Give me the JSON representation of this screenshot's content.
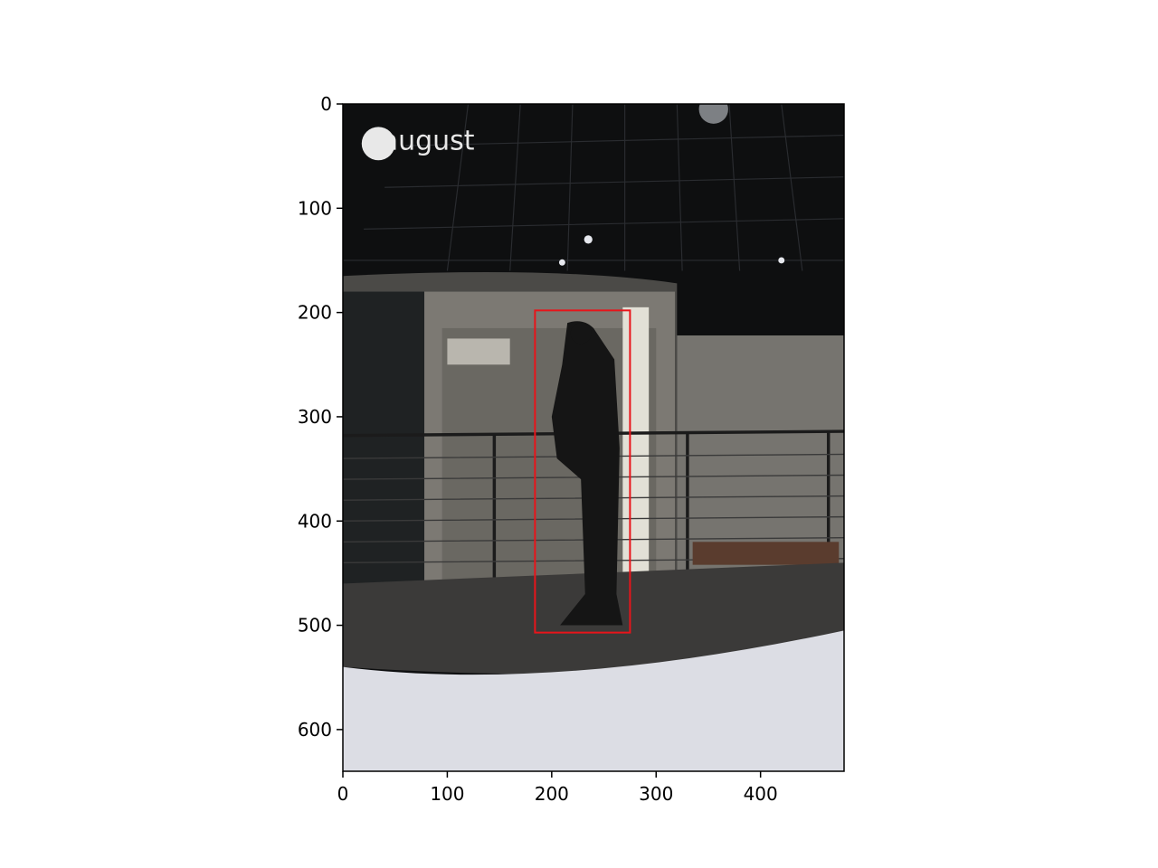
{
  "chart_data": {
    "type": "image",
    "watermark": "august",
    "xlim": [
      0,
      480
    ],
    "ylim": [
      640,
      0
    ],
    "xticks": [
      0,
      100,
      200,
      300,
      400
    ],
    "yticks": [
      0,
      100,
      200,
      300,
      400,
      500,
      600
    ],
    "boxes": [
      {
        "x0": 184,
        "y0": 198,
        "x1": 275,
        "y1": 507,
        "color": "#e8141a"
      }
    ]
  }
}
